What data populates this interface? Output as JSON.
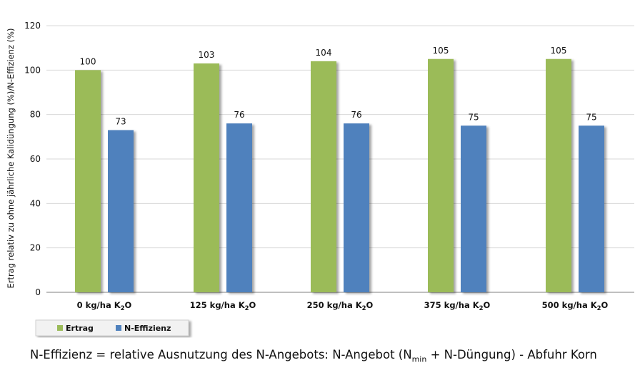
{
  "chart_data": {
    "type": "bar",
    "categories": [
      {
        "base": "0 kg/ha K",
        "sub": "2",
        "end": "O"
      },
      {
        "base": "125 kg/ha  K",
        "sub": "2",
        "end": "O"
      },
      {
        "base": "250 kg/ha K",
        "sub": "2",
        "end": "O"
      },
      {
        "base": "375 kg/ha K",
        "sub": "2",
        "end": "O"
      },
      {
        "base": "500 kg/ha K",
        "sub": "2",
        "end": "O"
      }
    ],
    "series": [
      {
        "name": "Ertrag",
        "color": "#9bbb59",
        "values": [
          100,
          103,
          104,
          105,
          105
        ]
      },
      {
        "name": "N-Effizienz",
        "color": "#4f81bd",
        "values": [
          73,
          76,
          76,
          75,
          75
        ]
      }
    ],
    "data_labels": [
      [
        "100",
        "103",
        "104",
        "105",
        "105"
      ],
      [
        "73",
        "76",
        "76",
        "75",
        "75"
      ]
    ],
    "ylabel": "Ertrag relativ zu ohne jährliche Kalidüngung (%)/N-Effizienz (%)",
    "ylim": [
      0,
      120
    ],
    "yticks": [
      0,
      20,
      40,
      60,
      80,
      100,
      120
    ],
    "grid": true,
    "legend_position": "bottom-left"
  },
  "footnote": {
    "part1": "N-Effizienz = relative Ausnutzung des N-Angebots: N-Angebot (N",
    "sub": "min",
    "part2": " + N-Düngung) - Abfuhr Korn"
  }
}
